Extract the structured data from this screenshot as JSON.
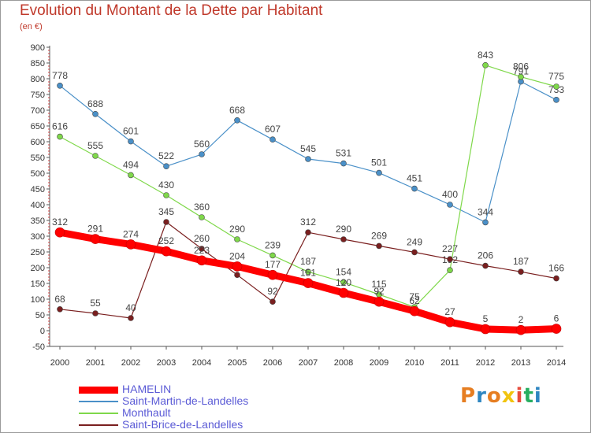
{
  "title": "Evolution du Montant de la Dette par Habitant",
  "unit_label": "(en €)",
  "logo": {
    "letters": [
      "P",
      "r",
      "o",
      "x",
      "i",
      "t",
      "i"
    ],
    "colors": [
      "#e67e22",
      "#2e86c1",
      "#e67e22",
      "#f1c40f",
      "#e74c3c",
      "#27ae60",
      "#2e86c1"
    ]
  },
  "chart_data": {
    "type": "line",
    "title": "Evolution du Montant de la Dette par Habitant",
    "ylabel": "(en €)",
    "xlabel": "",
    "x": [
      "2000",
      "2001",
      "2002",
      "2003",
      "2004",
      "2005",
      "2006",
      "2007",
      "2008",
      "2009",
      "2010",
      "2011",
      "2012",
      "2013",
      "2014"
    ],
    "ylim": [
      -50,
      900
    ],
    "yticks": [
      -50,
      0,
      50,
      100,
      150,
      200,
      250,
      300,
      350,
      400,
      450,
      500,
      550,
      600,
      650,
      700,
      750,
      800,
      850,
      900
    ],
    "grid": false,
    "legend_position": "bottom",
    "series": [
      {
        "name": "HAMELIN",
        "color": "#ff0000",
        "values": [
          312,
          291,
          274,
          252,
          223,
          204,
          177,
          151,
          120,
          92,
          62,
          27,
          5,
          2,
          6
        ],
        "labels": [
          "312",
          "291",
          "274",
          "252",
          "223",
          "204",
          "177",
          "151",
          "120",
          "92",
          "62",
          "27",
          "5",
          "2",
          "6"
        ],
        "emphasis": true
      },
      {
        "name": "Saint-Martin-de-Landelles",
        "color": "#4a90c8",
        "values": [
          778,
          688,
          601,
          522,
          560,
          668,
          607,
          545,
          531,
          501,
          451,
          400,
          344,
          791,
          733
        ],
        "labels": [
          "778",
          "688",
          "601",
          "522",
          "560",
          "668",
          "607",
          "545",
          "531",
          "501",
          "451",
          "400",
          "344",
          "791",
          "733"
        ]
      },
      {
        "name": "Monthault",
        "color": "#7fd84a",
        "values": [
          616,
          555,
          494,
          430,
          360,
          290,
          239,
          187,
          154,
          115,
          75,
          192,
          843,
          806,
          775
        ],
        "labels": [
          "616",
          "555",
          "494",
          "430",
          "360",
          "290",
          "239",
          "187",
          "154",
          "115",
          "75",
          "192",
          "843",
          "806",
          "775"
        ]
      },
      {
        "name": "Saint-Brice-de-Landelles",
        "color": "#7a1f1f",
        "values": [
          68,
          55,
          40,
          345,
          260,
          177,
          92,
          312,
          290,
          269,
          249,
          227,
          206,
          187,
          166
        ],
        "labels": [
          "68",
          "55",
          "40",
          "345",
          "260",
          "",
          "92",
          "312",
          "290",
          "269",
          "249",
          "227",
          "206",
          "187",
          "166"
        ]
      }
    ]
  }
}
